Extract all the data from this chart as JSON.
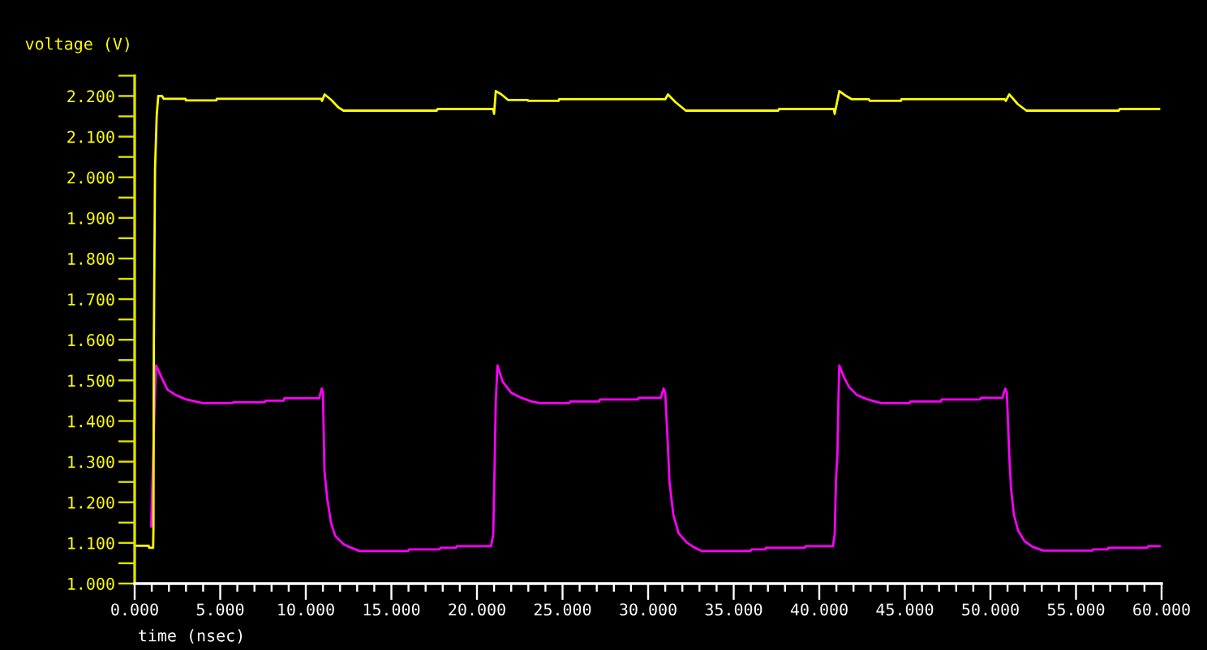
{
  "chart_data": {
    "type": "line",
    "xlabel": "time (nsec)",
    "ylabel": "voltage (V)",
    "xlim": [
      0,
      60
    ],
    "ylim": [
      1.0,
      2.25
    ],
    "xticks": [
      {
        "value": 0,
        "label": "0.000"
      },
      {
        "value": 1,
        "label": null
      },
      {
        "value": 2,
        "label": null
      },
      {
        "value": 3,
        "label": null
      },
      {
        "value": 4,
        "label": null
      },
      {
        "value": 5,
        "label": "5.000"
      },
      {
        "value": 6,
        "label": null
      },
      {
        "value": 7,
        "label": null
      },
      {
        "value": 8,
        "label": null
      },
      {
        "value": 9,
        "label": null
      },
      {
        "value": 10,
        "label": "10.000"
      },
      {
        "value": 11,
        "label": null
      },
      {
        "value": 12,
        "label": null
      },
      {
        "value": 13,
        "label": null
      },
      {
        "value": 14,
        "label": null
      },
      {
        "value": 15,
        "label": "15.000"
      },
      {
        "value": 16,
        "label": null
      },
      {
        "value": 17,
        "label": null
      },
      {
        "value": 18,
        "label": null
      },
      {
        "value": 19,
        "label": null
      },
      {
        "value": 20,
        "label": "20.000"
      },
      {
        "value": 21,
        "label": null
      },
      {
        "value": 22,
        "label": null
      },
      {
        "value": 23,
        "label": null
      },
      {
        "value": 24,
        "label": null
      },
      {
        "value": 25,
        "label": "25.000"
      },
      {
        "value": 26,
        "label": null
      },
      {
        "value": 27,
        "label": null
      },
      {
        "value": 28,
        "label": null
      },
      {
        "value": 29,
        "label": null
      },
      {
        "value": 30,
        "label": "30.000"
      },
      {
        "value": 31,
        "label": null
      },
      {
        "value": 32,
        "label": null
      },
      {
        "value": 33,
        "label": null
      },
      {
        "value": 34,
        "label": null
      },
      {
        "value": 35,
        "label": "35.000"
      },
      {
        "value": 36,
        "label": null
      },
      {
        "value": 37,
        "label": null
      },
      {
        "value": 38,
        "label": null
      },
      {
        "value": 39,
        "label": null
      },
      {
        "value": 40,
        "label": "40.000"
      },
      {
        "value": 41,
        "label": null
      },
      {
        "value": 42,
        "label": null
      },
      {
        "value": 43,
        "label": null
      },
      {
        "value": 44,
        "label": null
      },
      {
        "value": 45,
        "label": "45.000"
      },
      {
        "value": 46,
        "label": null
      },
      {
        "value": 47,
        "label": null
      },
      {
        "value": 48,
        "label": null
      },
      {
        "value": 49,
        "label": null
      },
      {
        "value": 50,
        "label": "50.000"
      },
      {
        "value": 51,
        "label": null
      },
      {
        "value": 52,
        "label": null
      },
      {
        "value": 53,
        "label": null
      },
      {
        "value": 54,
        "label": null
      },
      {
        "value": 55,
        "label": "55.000"
      },
      {
        "value": 56,
        "label": null
      },
      {
        "value": 57,
        "label": null
      },
      {
        "value": 58,
        "label": null
      },
      {
        "value": 59,
        "label": null
      },
      {
        "value": 60,
        "label": "60.000"
      }
    ],
    "yticks": [
      {
        "value": 1.0,
        "label": "1.000"
      },
      {
        "value": 1.05,
        "label": null
      },
      {
        "value": 1.1,
        "label": "1.100"
      },
      {
        "value": 1.15,
        "label": null
      },
      {
        "value": 1.2,
        "label": "1.200"
      },
      {
        "value": 1.25,
        "label": null
      },
      {
        "value": 1.3,
        "label": "1.300"
      },
      {
        "value": 1.35,
        "label": null
      },
      {
        "value": 1.4,
        "label": "1.400"
      },
      {
        "value": 1.45,
        "label": null
      },
      {
        "value": 1.5,
        "label": "1.500"
      },
      {
        "value": 1.55,
        "label": null
      },
      {
        "value": 1.6,
        "label": "1.600"
      },
      {
        "value": 1.65,
        "label": null
      },
      {
        "value": 1.7,
        "label": "1.700"
      },
      {
        "value": 1.75,
        "label": null
      },
      {
        "value": 1.8,
        "label": "1.800"
      },
      {
        "value": 1.85,
        "label": null
      },
      {
        "value": 1.9,
        "label": "1.900"
      },
      {
        "value": 1.95,
        "label": null
      },
      {
        "value": 2.0,
        "label": "2.000"
      },
      {
        "value": 2.05,
        "label": null
      },
      {
        "value": 2.1,
        "label": "2.100"
      },
      {
        "value": 2.15,
        "label": null
      },
      {
        "value": 2.2,
        "label": "2.200"
      },
      {
        "value": 2.25,
        "label": null
      }
    ],
    "series": [
      {
        "color": "#ff00ff",
        "x": [
          0.97,
          0.98,
          1.16,
          1.25,
          1.61,
          1.92,
          2.4,
          3.03,
          3.98,
          5.7,
          5.75,
          7.6,
          7.65,
          8.7,
          8.75,
          10.78,
          10.93,
          11.0,
          11.09,
          11.25,
          11.47,
          11.72,
          12.2,
          12.66,
          13.13,
          15.99,
          16.04,
          17.82,
          17.87,
          18.77,
          18.82,
          20.82,
          20.95,
          21.02,
          21.1,
          21.2,
          21.5,
          21.99,
          22.6,
          23.2,
          23.66,
          25.4,
          25.45,
          27.13,
          27.18,
          29.4,
          29.45,
          30.74,
          30.9,
          31.0,
          31.15,
          31.25,
          31.47,
          31.78,
          32.26,
          32.73,
          33.15,
          35.98,
          36.03,
          36.83,
          36.88,
          39.15,
          39.2,
          40.8,
          40.9,
          40.98,
          41.06,
          41.12,
          41.17,
          41.42,
          41.74,
          42.2,
          42.84,
          43.6,
          45.28,
          45.33,
          47.1,
          47.15,
          49.4,
          49.45,
          50.7,
          50.87,
          50.96,
          51.1,
          51.2,
          51.37,
          51.62,
          52.0,
          52.48,
          53.1,
          55.95,
          56.0,
          56.84,
          56.89,
          59.17,
          59.22,
          59.9
        ],
        "values": [
          1.14,
          1.165,
          1.428,
          1.537,
          1.504,
          1.477,
          1.464,
          1.453,
          1.444,
          1.444,
          1.446,
          1.446,
          1.45,
          1.45,
          1.456,
          1.456,
          1.48,
          1.47,
          1.277,
          1.21,
          1.15,
          1.117,
          1.097,
          1.088,
          1.08,
          1.08,
          1.084,
          1.084,
          1.088,
          1.088,
          1.092,
          1.092,
          1.12,
          1.264,
          1.45,
          1.537,
          1.497,
          1.47,
          1.457,
          1.448,
          1.444,
          1.444,
          1.448,
          1.448,
          1.453,
          1.453,
          1.457,
          1.457,
          1.48,
          1.47,
          1.344,
          1.25,
          1.17,
          1.124,
          1.101,
          1.088,
          1.08,
          1.08,
          1.084,
          1.084,
          1.088,
          1.088,
          1.092,
          1.092,
          1.12,
          1.26,
          1.317,
          1.45,
          1.537,
          1.51,
          1.484,
          1.464,
          1.453,
          1.444,
          1.444,
          1.448,
          1.448,
          1.453,
          1.453,
          1.457,
          1.457,
          1.48,
          1.47,
          1.317,
          1.237,
          1.17,
          1.13,
          1.104,
          1.09,
          1.081,
          1.081,
          1.084,
          1.084,
          1.088,
          1.088,
          1.092,
          1.092
        ]
      },
      {
        "color": "#ffff00",
        "x": [
          0,
          0.82,
          0.85,
          1.08,
          1.1,
          1.12,
          1.19,
          1.29,
          1.38,
          1.6,
          1.7,
          2.97,
          3.0,
          4.77,
          4.8,
          10.9,
          10.95,
          11.1,
          11.5,
          11.9,
          12.2,
          17.65,
          17.7,
          20.95,
          21.0,
          21.1,
          21.4,
          21.83,
          22.97,
          23.0,
          24.77,
          24.8,
          31.0,
          31.16,
          31.6,
          32.2,
          37.6,
          37.65,
          40.85,
          40.9,
          41.17,
          41.5,
          41.9,
          42.9,
          42.95,
          44.77,
          44.8,
          50.83,
          50.9,
          51.1,
          51.6,
          52.1,
          57.5,
          57.55,
          59.87
        ],
        "values": [
          1.093,
          1.093,
          1.088,
          1.088,
          1.141,
          1.584,
          2.02,
          2.153,
          2.2,
          2.2,
          2.193,
          2.193,
          2.189,
          2.189,
          2.193,
          2.193,
          2.188,
          2.204,
          2.19,
          2.172,
          2.164,
          2.164,
          2.168,
          2.168,
          2.156,
          2.212,
          2.205,
          2.19,
          2.19,
          2.188,
          2.188,
          2.192,
          2.192,
          2.204,
          2.185,
          2.164,
          2.164,
          2.168,
          2.168,
          2.156,
          2.212,
          2.202,
          2.192,
          2.192,
          2.188,
          2.188,
          2.192,
          2.192,
          2.188,
          2.204,
          2.18,
          2.164,
          2.164,
          2.168,
          2.168
        ]
      }
    ]
  }
}
